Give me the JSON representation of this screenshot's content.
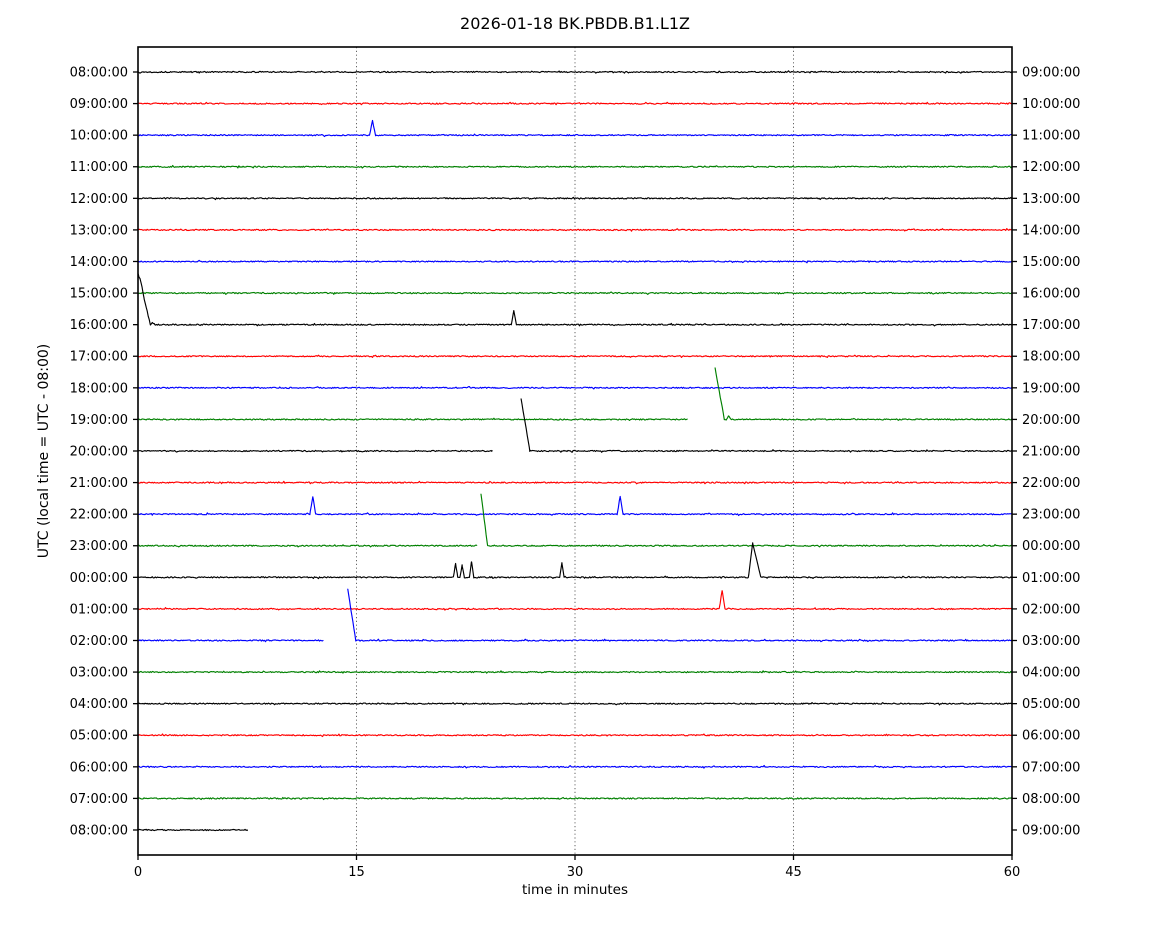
{
  "figure_title": "2026-01-18 BK.PBDB.B1.L1Z",
  "chart_data": {
    "type": "line",
    "variant": "helicorder-dayplot",
    "title": "2026-01-18 BK.PBDB.B1.L1Z",
    "xlabel": "time in minutes",
    "ylabel": "UTC (local time = UTC - 08:00)",
    "xlim": [
      0,
      60
    ],
    "x_ticks": [
      0,
      15,
      30,
      45,
      60
    ],
    "x_tick_labels": [
      "0",
      "15",
      "30",
      "45",
      "60"
    ],
    "grid": {
      "vertical_dotted_at_minutes": [
        15,
        30,
        45
      ]
    },
    "legend": "none",
    "trace_color_cycle": [
      "#000000",
      "#ff0000",
      "#0000ff",
      "#008000"
    ],
    "minutes_per_line": 60,
    "rows": [
      {
        "left_label": "08:00:00",
        "right_label": "09:00:00",
        "color": "#000000",
        "segments": [
          [
            0,
            60
          ]
        ],
        "spikes": [],
        "falls": []
      },
      {
        "left_label": "09:00:00",
        "right_label": "10:00:00",
        "color": "#ff0000",
        "segments": [
          [
            0,
            60
          ]
        ],
        "spikes": [],
        "falls": []
      },
      {
        "left_label": "10:00:00",
        "right_label": "11:00:00",
        "color": "#0000ff",
        "segments": [
          [
            0,
            60
          ]
        ],
        "spikes": [
          {
            "t": 16.1,
            "amp": 0.48,
            "w": 0.4
          }
        ],
        "falls": []
      },
      {
        "left_label": "11:00:00",
        "right_label": "12:00:00",
        "color": "#008000",
        "segments": [
          [
            0,
            60
          ]
        ],
        "spikes": [],
        "falls": []
      },
      {
        "left_label": "12:00:00",
        "right_label": "13:00:00",
        "color": "#000000",
        "segments": [
          [
            0,
            60
          ]
        ],
        "spikes": [],
        "falls": []
      },
      {
        "left_label": "13:00:00",
        "right_label": "14:00:00",
        "color": "#ff0000",
        "segments": [
          [
            0,
            60
          ]
        ],
        "spikes": [],
        "falls": []
      },
      {
        "left_label": "14:00:00",
        "right_label": "15:00:00",
        "color": "#0000ff",
        "segments": [
          [
            0,
            60
          ]
        ],
        "spikes": [],
        "falls": []
      },
      {
        "left_label": "15:00:00",
        "right_label": "16:00:00",
        "color": "#008000",
        "segments": [
          [
            0,
            60
          ]
        ],
        "spikes": [],
        "falls": []
      },
      {
        "left_label": "16:00:00",
        "right_label": "17:00:00",
        "color": "#000000",
        "segments": [
          [
            0,
            60
          ]
        ],
        "spikes": [
          {
            "t": 0.22,
            "amp": 0.12,
            "w": 0.4
          },
          {
            "t": 1.0,
            "amp": 0.08,
            "w": 0.3
          },
          {
            "t": 25.8,
            "amp": 0.45,
            "w": 0.35
          }
        ],
        "falls": [
          {
            "t0": 0.0,
            "t1": 0.85,
            "amp": 1.62
          }
        ]
      },
      {
        "left_label": "17:00:00",
        "right_label": "18:00:00",
        "color": "#ff0000",
        "segments": [
          [
            0,
            60
          ]
        ],
        "spikes": [],
        "falls": []
      },
      {
        "left_label": "18:00:00",
        "right_label": "19:00:00",
        "color": "#0000ff",
        "segments": [
          [
            0,
            60
          ]
        ],
        "spikes": [],
        "falls": []
      },
      {
        "left_label": "19:00:00",
        "right_label": "20:00:00",
        "color": "#008000",
        "segments": [
          [
            0,
            37.7
          ],
          [
            39.62,
            60
          ]
        ],
        "spikes": [
          {
            "t": 40.55,
            "amp": 0.12,
            "w": 0.3
          }
        ],
        "falls": [
          {
            "t0": 39.62,
            "t1": 40.25,
            "amp": 1.62
          }
        ]
      },
      {
        "left_label": "20:00:00",
        "right_label": "21:00:00",
        "color": "#000000",
        "segments": [
          [
            0,
            24.3
          ],
          [
            26.3,
            60
          ]
        ],
        "spikes": [],
        "falls": [
          {
            "t0": 26.3,
            "t1": 26.9,
            "amp": 1.66
          }
        ]
      },
      {
        "left_label": "21:00:00",
        "right_label": "22:00:00",
        "color": "#ff0000",
        "segments": [
          [
            0,
            60
          ]
        ],
        "spikes": [],
        "falls": []
      },
      {
        "left_label": "22:00:00",
        "right_label": "23:00:00",
        "color": "#0000ff",
        "segments": [
          [
            0,
            60
          ]
        ],
        "spikes": [
          {
            "t": 12.0,
            "amp": 0.55,
            "w": 0.4
          },
          {
            "t": 33.1,
            "amp": 0.55,
            "w": 0.4
          }
        ],
        "falls": []
      },
      {
        "left_label": "23:00:00",
        "right_label": "00:00:00",
        "color": "#008000",
        "segments": [
          [
            0,
            23.25
          ],
          [
            23.55,
            60
          ]
        ],
        "spikes": [],
        "falls": [
          {
            "t0": 23.55,
            "t1": 24.0,
            "amp": 1.62
          }
        ]
      },
      {
        "left_label": "00:00:00",
        "right_label": "01:00:00",
        "color": "#000000",
        "segments": [
          [
            0,
            60
          ]
        ],
        "spikes": [
          {
            "t": 21.8,
            "amp": 0.44,
            "w": 0.3
          },
          {
            "t": 22.25,
            "amp": 0.38,
            "w": 0.3
          },
          {
            "t": 22.9,
            "amp": 0.5,
            "w": 0.3
          },
          {
            "t": 29.1,
            "amp": 0.45,
            "w": 0.3
          },
          {
            "t": 42.2,
            "amp": 1.08,
            "wl": 0.3,
            "wr": 0.55
          }
        ],
        "falls": []
      },
      {
        "left_label": "01:00:00",
        "right_label": "02:00:00",
        "color": "#ff0000",
        "segments": [
          [
            0,
            60
          ]
        ],
        "spikes": [
          {
            "t": 40.1,
            "amp": 0.57,
            "w": 0.4
          }
        ],
        "falls": []
      },
      {
        "left_label": "02:00:00",
        "right_label": "03:00:00",
        "color": "#0000ff",
        "segments": [
          [
            0,
            12.7
          ],
          [
            14.4,
            60
          ]
        ],
        "spikes": [],
        "falls": [
          {
            "t0": 14.4,
            "t1": 14.95,
            "amp": 1.61
          }
        ]
      },
      {
        "left_label": "03:00:00",
        "right_label": "04:00:00",
        "color": "#008000",
        "segments": [
          [
            0,
            60
          ]
        ],
        "spikes": [],
        "falls": []
      },
      {
        "left_label": "04:00:00",
        "right_label": "05:00:00",
        "color": "#000000",
        "segments": [
          [
            0,
            60
          ]
        ],
        "spikes": [],
        "falls": []
      },
      {
        "left_label": "05:00:00",
        "right_label": "06:00:00",
        "color": "#ff0000",
        "segments": [
          [
            0,
            60
          ]
        ],
        "spikes": [],
        "falls": []
      },
      {
        "left_label": "06:00:00",
        "right_label": "07:00:00",
        "color": "#0000ff",
        "segments": [
          [
            0,
            60
          ]
        ],
        "spikes": [],
        "falls": []
      },
      {
        "left_label": "07:00:00",
        "right_label": "08:00:00",
        "color": "#008000",
        "segments": [
          [
            0,
            60
          ]
        ],
        "spikes": [],
        "falls": []
      },
      {
        "left_label": "08:00:00",
        "right_label": "09:00:00",
        "color": "#000000",
        "segments": [
          [
            0,
            7.5
          ]
        ],
        "spikes": [],
        "falls": []
      }
    ]
  }
}
